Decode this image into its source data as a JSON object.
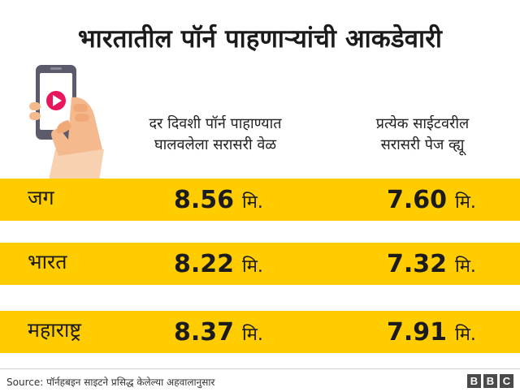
{
  "title": "भारतातील पॉर्न पाहणाऱ्यांची आकडेवारी",
  "illustration_icon": "phone-in-hand-play-icon",
  "chart_data": {
    "type": "table",
    "columns": [
      "दर दिवशी पॉर्न पाहाण्यात घालवलेला सरासरी वेळ",
      "प्रत्येक साईटवरील सरासरी पेज व्ह्यू"
    ],
    "column_lines": [
      [
        "दर दिवशी पॉर्न पाहाण्यात",
        "घालवलेला सरासरी वेळ"
      ],
      [
        "प्रत्येक साईटवरील",
        "सरासरी पेज व्ह्यू"
      ]
    ],
    "unit": "मि.",
    "rows": [
      {
        "region": "जग",
        "time": "8.56",
        "pageviews": "7.60"
      },
      {
        "region": "भारत",
        "time": "8.22",
        "pageviews": "7.32"
      },
      {
        "region": "महाराष्ट्र",
        "time": "8.37",
        "pageviews": "7.91"
      }
    ]
  },
  "colors": {
    "row_band": "#ffcc00",
    "text": "#1b1b1b",
    "play_icon": "#e8175d",
    "hand": "#f5b98e"
  },
  "footer": {
    "source": "Source: पॉर्नहबइन साइटने प्रसिद्ध केलेल्या अहवालानुसार",
    "logo": [
      "B",
      "B",
      "C"
    ]
  }
}
